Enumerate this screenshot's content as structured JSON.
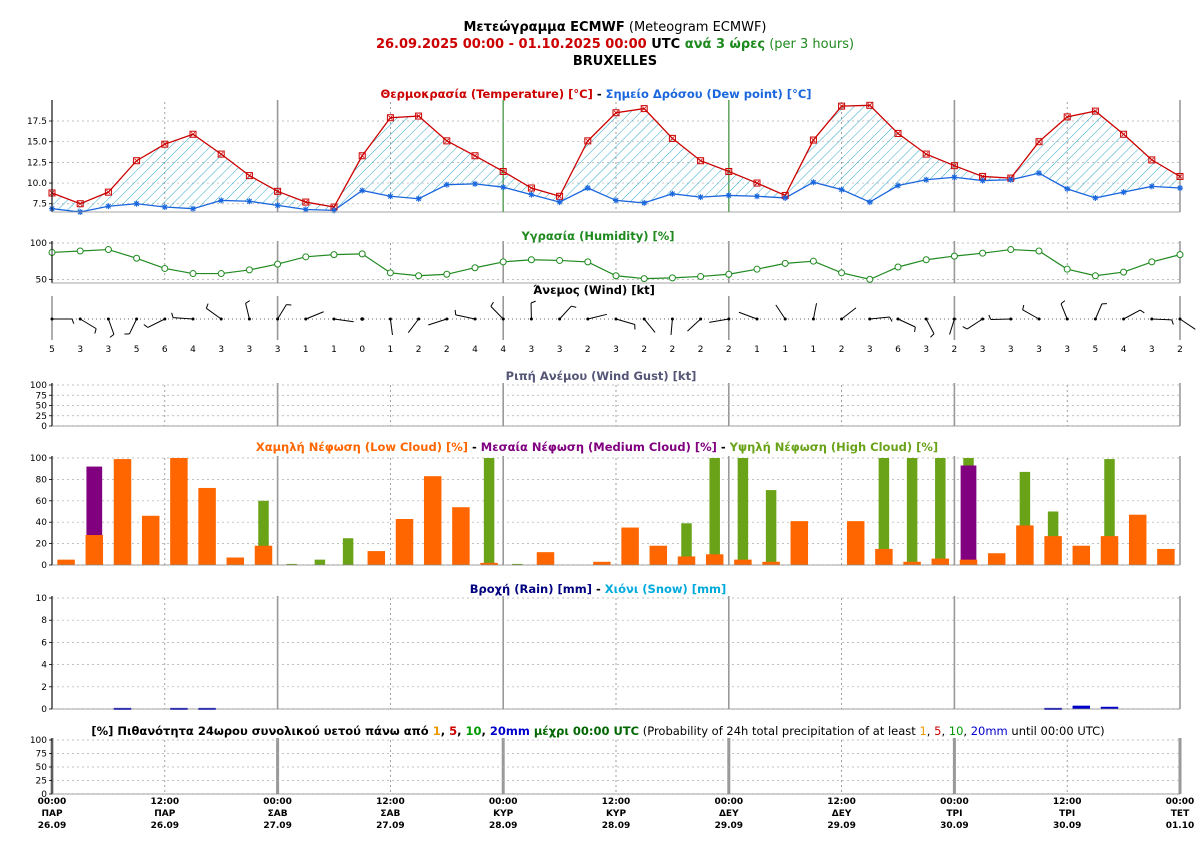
{
  "header": {
    "line1_bold": "Μετεώγραμμα ECMWF",
    "line1_plain": " (Meteogram ECMWF)",
    "date_range": "26.09.2025 00:00 - 01.10.2025 00:00",
    "utc": " UTC ",
    "every": "ανά 3 ώρες",
    "per": " (per 3 hours)",
    "location": "BRUXELLES"
  },
  "colors": {
    "temperature": "#cc0000",
    "dew_point": "#1a66dd",
    "humidity": "#1f8a1f",
    "low_cloud": "#ff6600",
    "medium_cloud": "#800080",
    "high_cloud": "#6aa318",
    "rain": "#0000cc",
    "snow": "#00aadd",
    "gust_title": "#555577",
    "dark_green": "#006600",
    "day_line": "#999999",
    "green_day_line": "#66aa66"
  },
  "titles": {
    "temp": {
      "a": "Θερμοκρασία (Temperature) [°C]",
      "sep": " - ",
      "b": "Σημείο Δρόσου (Dew point) [°C]"
    },
    "humidity": "Υγρασία (Humidity) [%]",
    "wind": "Άνεμος (Wind) [kt]",
    "gust": "Ριπή Ανέμου (Wind Gust) [kt]",
    "cloud": {
      "a": "Χαμηλή Νέφωση (Low Cloud) [%]",
      "sep1": " - ",
      "b": "Μεσαία Νέφωση (Medium Cloud) [%]",
      "sep2": " - ",
      "c": "Υψηλή Νέφωση (High Cloud) [%]"
    },
    "rain": {
      "a": "Βροχή (Rain) [mm]",
      "sep": " - ",
      "b": "Χιόνι (Snow) [mm]"
    },
    "prob": {
      "p1": "[%] Πιθανότητα 24ωρου συνολικού υετού πάνω από ",
      "t1": "1",
      "c1": ", ",
      "t5": "5",
      "c2": ", ",
      "t10": "10",
      "c3": ", ",
      "t20": "20mm",
      "p2": " μέχρι 00:00 UTC",
      "p3": " (Probability of 24h total precipitation of at least ",
      "u1": "1",
      "d1": ", ",
      "u5": "5",
      "d2": ", ",
      "u10": "10",
      "d3": ", ",
      "u20": "20mm",
      "p4": " until 00:00 UTC)"
    }
  },
  "axes": {
    "temp_ticks": [
      "7.5",
      "10.0",
      "12.5",
      "15.0",
      "17.5"
    ],
    "humidity_ticks": [
      "50",
      "100"
    ],
    "gust_ticks": [
      "0",
      "25",
      "50",
      "75",
      "100"
    ],
    "cloud_ticks": [
      "0",
      "20",
      "40",
      "60",
      "80",
      "100"
    ],
    "rain_ticks": [
      "0",
      "2",
      "4",
      "6",
      "8",
      "10"
    ],
    "prob_ticks": [
      "0",
      "25",
      "50",
      "75",
      "100"
    ],
    "x_labels": [
      [
        "00:00",
        "ΠΑΡ",
        "26.09"
      ],
      [
        "12:00",
        "ΠΑΡ",
        "26.09"
      ],
      [
        "00:00",
        "ΣΑΒ",
        "27.09"
      ],
      [
        "12:00",
        "ΣΑΒ",
        "27.09"
      ],
      [
        "00:00",
        "ΚΥΡ",
        "28.09"
      ],
      [
        "12:00",
        "ΚΥΡ",
        "28.09"
      ],
      [
        "00:00",
        "ΔΕΥ",
        "29.09"
      ],
      [
        "12:00",
        "ΔΕΥ",
        "29.09"
      ],
      [
        "00:00",
        "ΤΡΙ",
        "30.09"
      ],
      [
        "12:00",
        "ΤΡΙ",
        "30.09"
      ],
      [
        "00:00",
        "ΤΕΤ",
        "01.10"
      ]
    ]
  },
  "chart_data": {
    "type": "line",
    "x_step_hours": 3,
    "temperature": [
      8.8,
      7.5,
      8.9,
      12.7,
      14.7,
      15.9,
      13.5,
      10.9,
      9.0,
      7.7,
      7.1,
      13.3,
      17.9,
      18.1,
      15.1,
      13.3,
      11.4,
      9.4,
      8.4,
      15.1,
      18.5,
      19.0,
      15.4,
      12.7,
      11.4,
      10.0,
      8.5,
      15.2,
      19.3,
      19.4,
      16.0,
      13.5,
      12.1,
      10.8,
      10.6,
      15.0,
      18.0,
      18.7,
      15.9,
      12.8,
      10.8
    ],
    "dew_point": [
      6.9,
      6.5,
      7.2,
      7.5,
      7.1,
      6.9,
      7.9,
      7.8,
      7.3,
      6.8,
      6.7,
      9.1,
      8.4,
      8.1,
      9.8,
      9.9,
      9.5,
      8.6,
      7.7,
      9.4,
      7.9,
      7.6,
      8.7,
      8.3,
      8.5,
      8.4,
      8.2,
      10.1,
      9.2,
      7.7,
      9.7,
      10.4,
      10.7,
      10.3,
      10.4,
      11.2,
      9.3,
      8.2,
      8.9,
      9.6,
      9.4
    ],
    "humidity": [
      87,
      89,
      91,
      79,
      65,
      58,
      58,
      63,
      71,
      81,
      84,
      85,
      59,
      55,
      57,
      66,
      74,
      77,
      76,
      74,
      55,
      51,
      52,
      54,
      57,
      64,
      72,
      75,
      59,
      50,
      67,
      77,
      82,
      86,
      91,
      89,
      64,
      55,
      60,
      74,
      84
    ],
    "wind_speed": [
      5,
      3,
      3,
      5,
      6,
      4,
      3,
      3,
      3,
      1,
      1,
      0,
      1,
      2,
      2,
      4,
      4,
      3,
      3,
      2,
      3,
      2,
      2,
      2,
      2,
      1,
      1,
      1,
      2,
      3,
      6,
      3,
      2,
      3,
      3,
      3,
      3,
      5,
      4,
      3,
      2
    ],
    "wind_gust": [],
    "low_cloud": [
      5,
      28,
      99,
      46,
      100,
      72,
      7,
      18,
      0,
      0,
      0,
      13,
      43,
      83,
      54,
      2,
      0,
      12,
      0,
      3,
      35,
      18,
      8,
      10,
      5,
      3,
      41,
      0,
      41,
      15,
      3,
      6,
      5,
      11,
      37,
      27,
      18,
      27,
      47,
      15
    ],
    "medium_cloud": [
      0,
      92,
      0,
      0,
      0,
      0,
      0,
      0,
      0,
      0,
      0,
      0,
      0,
      0,
      0,
      0,
      0,
      0,
      0,
      0,
      0,
      0,
      0,
      0,
      0,
      0,
      0,
      0,
      0,
      0,
      0,
      0,
      93,
      0,
      0,
      0,
      0,
      0,
      0,
      0
    ],
    "high_cloud": [
      0,
      0,
      0,
      0,
      0,
      0,
      0,
      60,
      1,
      5,
      25,
      0,
      0,
      0,
      0,
      100,
      1,
      0,
      0,
      0,
      0,
      0,
      39,
      100,
      100,
      70,
      0,
      0,
      0,
      100,
      100,
      100,
      100,
      0,
      87,
      50,
      0,
      99,
      0,
      0
    ],
    "rain": [
      0,
      0,
      0.1,
      0,
      0.1,
      0.1,
      0,
      0,
      0,
      0,
      0,
      0,
      0,
      0,
      0,
      0,
      0,
      0,
      0,
      0,
      0,
      0,
      0,
      0,
      0,
      0,
      0,
      0,
      0,
      0,
      0,
      0,
      0,
      0,
      0,
      0.1,
      0.3,
      0.2,
      0,
      0
    ],
    "snow": [],
    "precip_probability": [],
    "temp_range": [
      6.5,
      19.8
    ],
    "humidity_range": [
      45,
      100
    ],
    "cloud_range": [
      0,
      100
    ],
    "rain_range": [
      0,
      10
    ],
    "grid": true
  }
}
